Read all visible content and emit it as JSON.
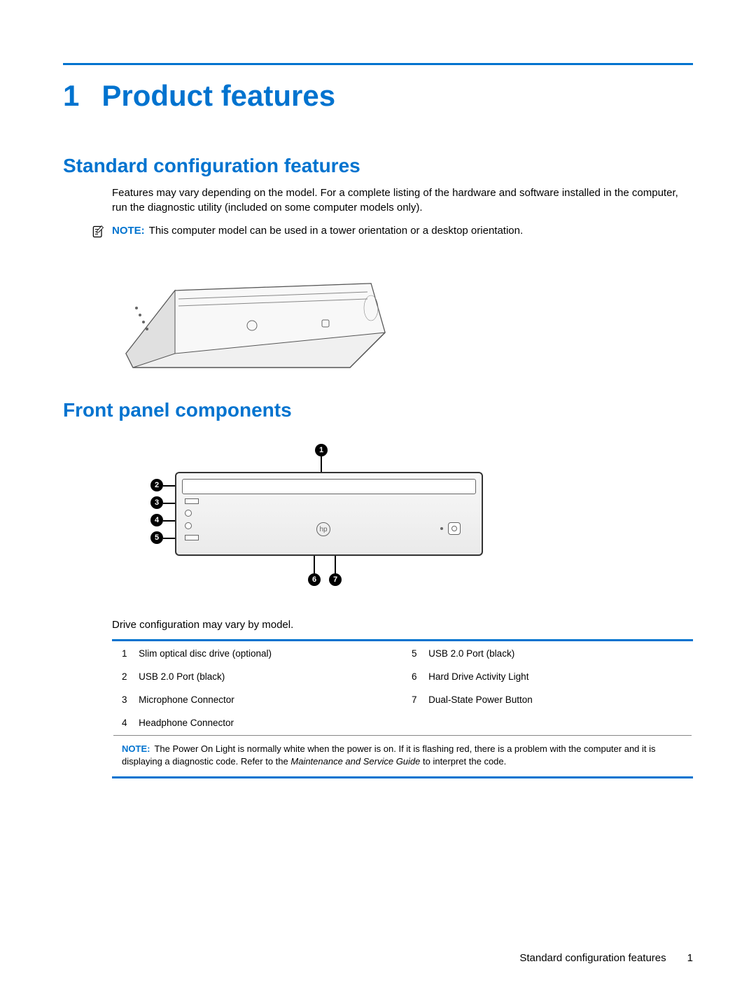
{
  "colors": {
    "accent": "#0073cf",
    "text": "#000000",
    "rule": "#0073cf"
  },
  "chapter": {
    "number": "1",
    "title": "Product features"
  },
  "section1": {
    "heading": "Standard configuration features",
    "body": "Features may vary depending on the model. For a complete listing of the hardware and software installed in the computer, run the diagnostic utility (included on some computer models only).",
    "note_label": "NOTE:",
    "note_text": "This computer model can be used in a tower orientation or a desktop orientation."
  },
  "section2": {
    "heading": "Front panel components",
    "caption": "Drive configuration may vary by model.",
    "callouts": [
      "1",
      "2",
      "3",
      "4",
      "5",
      "6",
      "7"
    ],
    "table": {
      "rows": [
        {
          "n": "1",
          "d": "Slim optical disc drive (optional)",
          "n2": "5",
          "d2": "USB 2.0 Port (black)"
        },
        {
          "n": "2",
          "d": "USB 2.0 Port (black)",
          "n2": "6",
          "d2": "Hard Drive Activity Light"
        },
        {
          "n": "3",
          "d": "Microphone Connector",
          "n2": "7",
          "d2": "Dual-State Power Button"
        },
        {
          "n": "4",
          "d": "Headphone Connector",
          "n2": "",
          "d2": ""
        }
      ],
      "note_label": "NOTE:",
      "note_text_1": "The Power On Light is normally white when the power is on. If it is flashing red, there is a problem with the computer and it is displaying a diagnostic code. Refer to the ",
      "note_text_italic": "Maintenance and Service Guide",
      "note_text_2": " to interpret the code."
    }
  },
  "footer": {
    "section": "Standard configuration features",
    "page": "1"
  }
}
